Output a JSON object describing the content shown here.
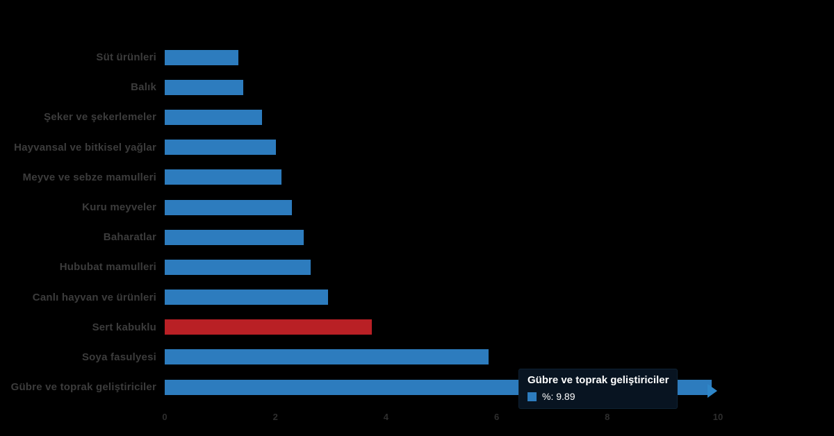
{
  "chart_data": {
    "type": "bar",
    "orientation": "horizontal",
    "title": "",
    "xlabel": "",
    "ylabel": "",
    "xlim": [
      0,
      10
    ],
    "x_ticks": [
      "0",
      "2",
      "4",
      "6",
      "8",
      "10"
    ],
    "grid": false,
    "legend": false,
    "background_color": "#000000",
    "bar_color_default": "#2d7cbe",
    "bar_color_highlight": "#b92025",
    "label_color": "#3c3c3c",
    "tick_color": "#2e2e2e",
    "categories": [
      "Süt ürünleri",
      "Balık",
      "Şeker ve şekerlemeler",
      "Hayvansal ve bitkisel yağlar",
      "Meyve ve sebze mamulleri",
      "Kuru meyveler",
      "Baharatlar",
      "Hububat mamulleri",
      "Canlı hayvan ve ürünleri",
      "Sert kabuklu",
      "Soya fasulyesi",
      "Gübre ve toprak geliştiriciler"
    ],
    "values": [
      1.33,
      1.42,
      1.76,
      2.01,
      2.11,
      2.3,
      2.51,
      2.64,
      2.95,
      3.74,
      5.85,
      9.89
    ],
    "bar_colors": [
      "#2d7cbe",
      "#2d7cbe",
      "#2d7cbe",
      "#2d7cbe",
      "#2d7cbe",
      "#2d7cbe",
      "#2d7cbe",
      "#2d7cbe",
      "#2d7cbe",
      "#b92025",
      "#2d7cbe",
      "#2d7cbe"
    ]
  },
  "tooltip": {
    "title": "Gübre ve toprak geliştiriciler",
    "value_label": "%: 9.89",
    "marker_color": "#2d7cbe"
  }
}
